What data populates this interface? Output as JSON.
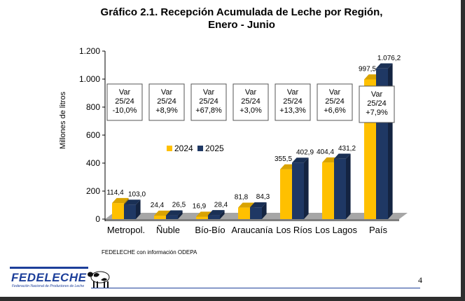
{
  "chart_data": {
    "type": "bar",
    "title": "Gráfico 2.1. Recepción Acumulada de Leche por Región,",
    "subtitle": "Enero - Junio",
    "ylabel": "Millones de litros",
    "xlabel": "",
    "ylim": [
      0,
      1200
    ],
    "yticks": [
      0,
      200,
      400,
      600,
      800,
      1000,
      1200
    ],
    "ytick_labels": [
      "0",
      "200",
      "400",
      "600",
      "800",
      "1.000",
      "1.200"
    ],
    "categories": [
      "Metropol.",
      "Ñuble",
      "Bío-Bío",
      "Araucanía",
      "Los Ríos",
      "Los Lagos",
      "País"
    ],
    "series": [
      {
        "name": "2024",
        "color": "#FFC000",
        "values": [
          114.4,
          24.4,
          16.9,
          81.8,
          355.5,
          404.4,
          997.5
        ],
        "labels": [
          "114,4",
          "24,4",
          "16,9",
          "81,8",
          "355,5",
          "404,4",
          "997,5"
        ]
      },
      {
        "name": "2025",
        "color": "#1F3864",
        "values": [
          103.0,
          26.5,
          28.4,
          84.3,
          402.9,
          431.2,
          1076.2
        ],
        "labels": [
          "103,0",
          "26,5",
          "28,4",
          "84,3",
          "402,9",
          "431,2",
          "1.076,2"
        ]
      }
    ],
    "annotations": [
      [
        "Var",
        "25/24",
        "-10,0%"
      ],
      [
        "Var",
        "25/24",
        "+8,9%"
      ],
      [
        "Var",
        "25/24",
        "+67,8%"
      ],
      [
        "Var",
        "25/24",
        "+3,0%"
      ],
      [
        "Var",
        "25/24",
        "+13,3%"
      ],
      [
        "Var",
        "25/24",
        "+6,6%"
      ],
      [
        "Var",
        "25/24",
        "+7,9%"
      ]
    ],
    "legend": "middle",
    "grid": false
  },
  "source_note": "FEDELECHE con información ODEPA",
  "page_number": "4",
  "logo": {
    "name": "FEDELECHE",
    "subtitle": "Federación Nacional de Productores de Leche"
  },
  "colors": {
    "floor": "#A6A6A6",
    "floor_dark": "#7F7F7F",
    "footer_line": "#1d3f9a"
  }
}
